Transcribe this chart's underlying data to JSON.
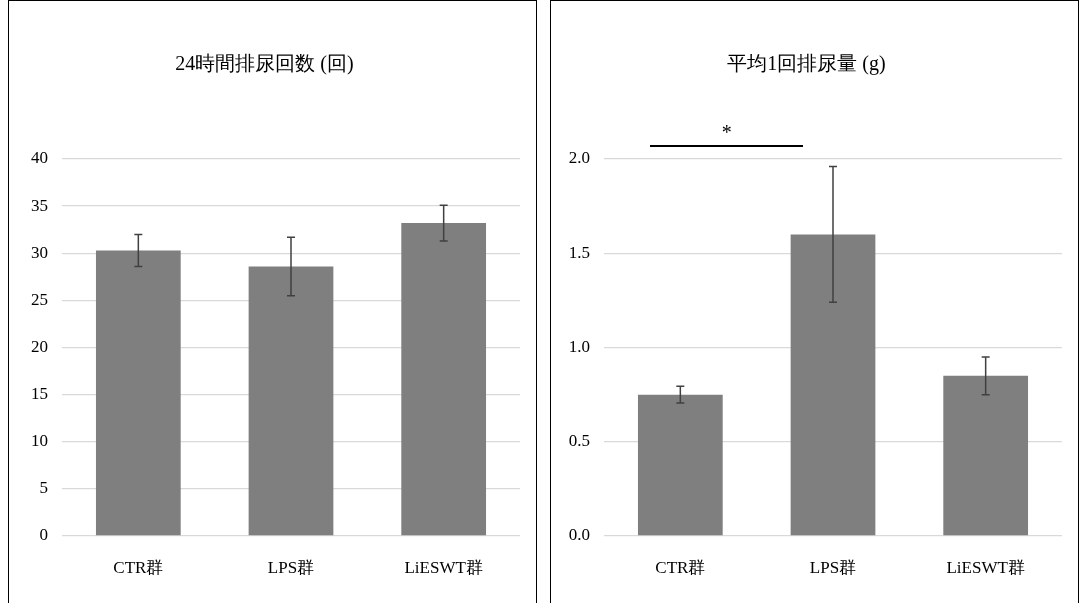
{
  "chart_data": [
    {
      "type": "bar",
      "title": "24時間排尿回数 (回)",
      "categories": [
        "CTR群",
        "LPS群",
        "LiESWT群"
      ],
      "values": [
        30.3,
        28.6,
        33.2
      ],
      "errors": [
        1.7,
        3.1,
        1.9
      ],
      "color": "#7f7f7f",
      "ylim": [
        0,
        40
      ],
      "yticks": [
        0,
        5,
        10,
        15,
        20,
        25,
        30,
        35,
        40
      ],
      "grid": "y"
    },
    {
      "type": "bar",
      "title": "平均1回排尿量 (g)",
      "categories": [
        "CTR群",
        "LPS群",
        "LiESWT群"
      ],
      "values": [
        0.75,
        1.6,
        0.85
      ],
      "errors": [
        0.045,
        0.36,
        0.1
      ],
      "color": "#7f7f7f",
      "ylim": [
        0,
        2
      ],
      "yticks": [
        {
          "value": 0,
          "label": "0.0"
        },
        0.5,
        {
          "value": 1,
          "label": "1.0"
        },
        1.5,
        {
          "value": 2,
          "label": "2.0"
        }
      ],
      "grid": "y",
      "annotations": [
        "*"
      ]
    }
  ]
}
